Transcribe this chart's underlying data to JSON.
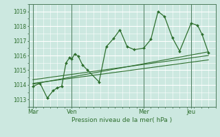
{
  "xlabel": "Pression niveau de la mer( hPa )",
  "bg_color": "#cce8e0",
  "line_color": "#2d6e2d",
  "grid_major_color": "#ffffff",
  "grid_minor_color": "#e0f0ec",
  "ylim": [
    1012.5,
    1019.5
  ],
  "xlim": [
    0,
    13.0
  ],
  "yticks": [
    1013,
    1014,
    1015,
    1016,
    1017,
    1018,
    1019
  ],
  "day_labels": [
    "Mar",
    "Ven",
    "Mer",
    "Jeu"
  ],
  "day_positions": [
    0.3,
    3.0,
    8.0,
    11.3
  ],
  "vline_positions": [
    0.3,
    3.0,
    8.0,
    11.3
  ],
  "main_line": [
    [
      0.3,
      1013.9
    ],
    [
      0.8,
      1014.1
    ],
    [
      1.3,
      1013.1
    ],
    [
      1.7,
      1013.6
    ],
    [
      2.0,
      1013.8
    ],
    [
      2.3,
      1013.9
    ],
    [
      2.6,
      1015.5
    ],
    [
      2.85,
      1015.85
    ],
    [
      3.0,
      1015.75
    ],
    [
      3.2,
      1016.1
    ],
    [
      3.45,
      1015.95
    ],
    [
      3.75,
      1015.35
    ],
    [
      4.1,
      1015.0
    ],
    [
      4.9,
      1014.2
    ],
    [
      5.4,
      1016.6
    ],
    [
      5.9,
      1017.15
    ],
    [
      6.35,
      1017.75
    ],
    [
      6.85,
      1016.6
    ],
    [
      7.35,
      1016.4
    ],
    [
      8.0,
      1016.5
    ],
    [
      8.5,
      1017.1
    ],
    [
      9.0,
      1019.0
    ],
    [
      9.45,
      1018.65
    ],
    [
      10.0,
      1017.2
    ],
    [
      10.5,
      1016.3
    ],
    [
      11.3,
      1018.2
    ],
    [
      11.75,
      1018.05
    ],
    [
      12.05,
      1017.45
    ],
    [
      12.5,
      1016.2
    ]
  ],
  "trend_line1": [
    [
      0.3,
      1014.05
    ],
    [
      12.5,
      1016.25
    ]
  ],
  "trend_line2": [
    [
      0.3,
      1014.35
    ],
    [
      12.5,
      1016.0
    ]
  ],
  "trend_line3": [
    [
      0.3,
      1014.1
    ],
    [
      12.5,
      1015.7
    ]
  ]
}
